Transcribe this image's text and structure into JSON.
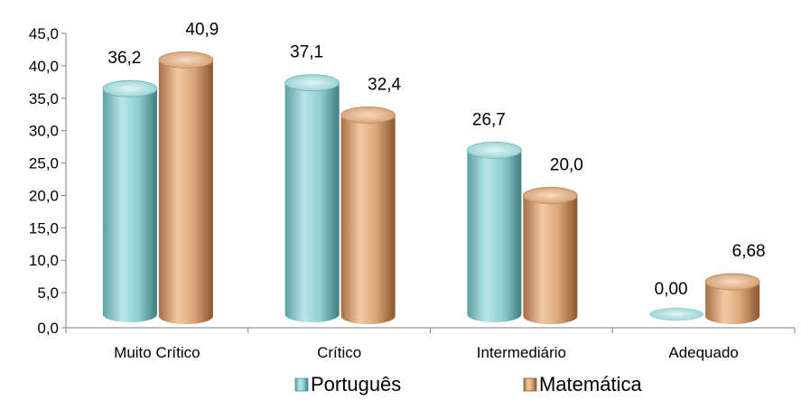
{
  "chart_data": {
    "type": "bar",
    "title": "",
    "xlabel": "",
    "ylabel": "",
    "categories": [
      "Muito Crítico",
      "Crítico",
      "Intermediário",
      "Adequado"
    ],
    "series": [
      {
        "name": "Português",
        "values": [
          36.2,
          37.1,
          26.7,
          0.0
        ],
        "labels": [
          "36,2",
          "37,1",
          "26,7",
          "0,00"
        ],
        "color": "#7fc6c8"
      },
      {
        "name": "Matemática",
        "values": [
          40.9,
          32.4,
          20.0,
          6.68
        ],
        "labels": [
          "40,9",
          "32,4",
          "20,0",
          "6,68"
        ],
        "color": "#d4a073"
      }
    ],
    "ylim": [
      0,
      45
    ],
    "yticks": [
      "0,0",
      "5,0",
      "10,0",
      "15,0",
      "20,0",
      "25,0",
      "30,0",
      "35,0",
      "40,0",
      "45,0"
    ],
    "legend_position": "bottom",
    "grid": false,
    "style": "3d-cylinder"
  }
}
